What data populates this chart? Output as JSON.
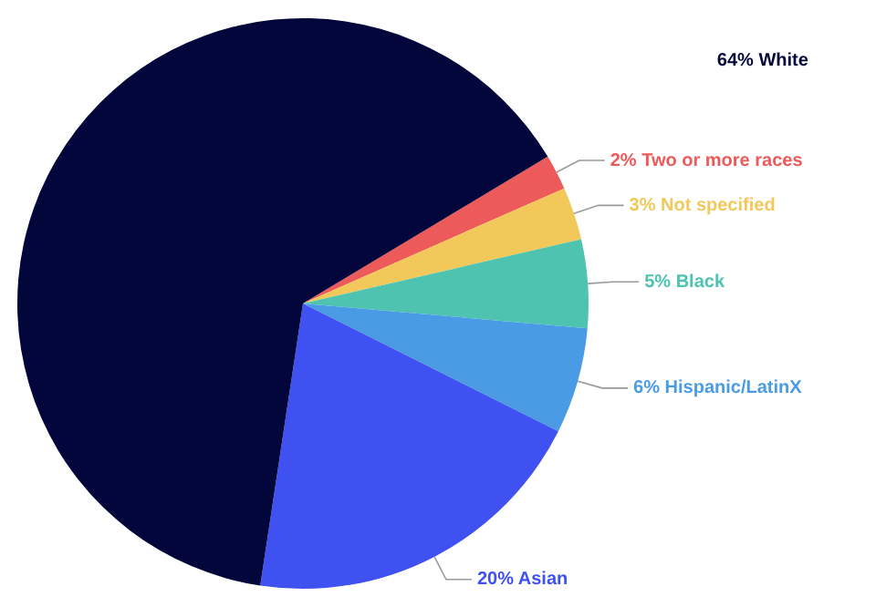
{
  "chart_data": {
    "type": "pie",
    "categories": [
      "Two or more races",
      "Not specified",
      "Black",
      "Hispanic/LatinX",
      "Asian",
      "White"
    ],
    "values": [
      2,
      3,
      5,
      6,
      20,
      64
    ],
    "value_labels": [
      "2%",
      "3%",
      "5%",
      "6%",
      "20%",
      "64%"
    ],
    "colors": [
      "#ec5a5a",
      "#f2c85b",
      "#4dc3b0",
      "#4a9be6",
      "#3f51f0",
      "#02063a"
    ],
    "legend": false
  }
}
